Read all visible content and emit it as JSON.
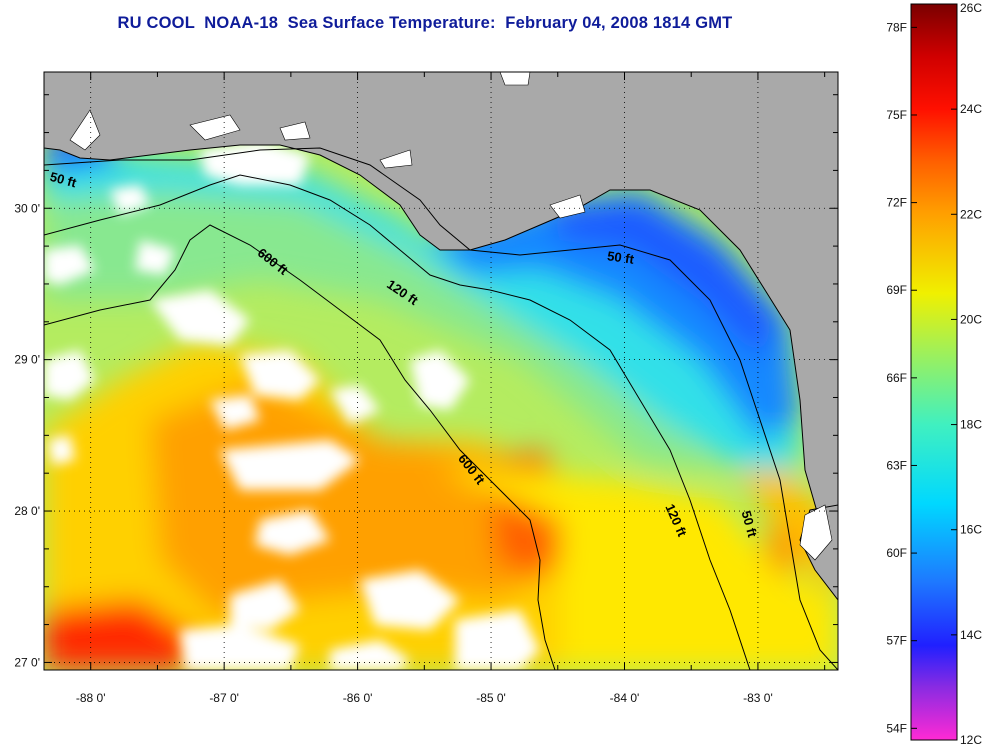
{
  "title": "RU COOL  NOAA-18  Sea Surface Temperature:  February 04, 2008 1814 GMT",
  "map": {
    "lon_ticks": [
      {
        "value": -88,
        "label": "-88 0'"
      },
      {
        "value": -87,
        "label": "-87 0'"
      },
      {
        "value": -86,
        "label": "-86 0'"
      },
      {
        "value": -85,
        "label": "-85 0'"
      },
      {
        "value": -84,
        "label": "-84 0'"
      },
      {
        "value": -83,
        "label": "-83 0'"
      }
    ],
    "lat_ticks": [
      {
        "value": 30,
        "label": "30 0'"
      },
      {
        "value": 29,
        "label": "29 0'"
      },
      {
        "value": 28,
        "label": "28 0'"
      },
      {
        "value": 27,
        "label": "27 0'"
      }
    ],
    "lon_range": [
      -88.35,
      -82.4
    ],
    "lat_range": [
      26.95,
      30.9
    ],
    "colors": {
      "land": "#a9a9a9",
      "cloud": "#ffffff",
      "frame": "#000000"
    },
    "contour_labels": [
      "50 ft",
      "600 ft",
      "120 ft",
      "50 ft",
      "600 ft",
      "120 ft",
      "50 ft"
    ]
  },
  "colorbar": {
    "f_labels": [
      "78F",
      "75F",
      "72F",
      "69F",
      "66F",
      "63F",
      "60F",
      "57F",
      "54F"
    ],
    "c_labels": [
      "26C",
      "24C",
      "22C",
      "20C",
      "18C",
      "16C",
      "14C",
      "12C"
    ],
    "c_range": [
      12,
      26
    ],
    "stops": [
      {
        "c": 12,
        "color": "#ff2ad4"
      },
      {
        "c": 13,
        "color": "#8a2be2"
      },
      {
        "c": 13.8,
        "color": "#2020ff"
      },
      {
        "c": 15,
        "color": "#1e78ff"
      },
      {
        "c": 16.5,
        "color": "#00d8ff"
      },
      {
        "c": 18,
        "color": "#40f0c0"
      },
      {
        "c": 19.5,
        "color": "#a8f050"
      },
      {
        "c": 20.5,
        "color": "#f0f000"
      },
      {
        "c": 22,
        "color": "#ffa000"
      },
      {
        "c": 23,
        "color": "#ff6000"
      },
      {
        "c": 24,
        "color": "#ff1000"
      },
      {
        "c": 25,
        "color": "#d00000"
      },
      {
        "c": 26,
        "color": "#7a0000"
      }
    ]
  }
}
